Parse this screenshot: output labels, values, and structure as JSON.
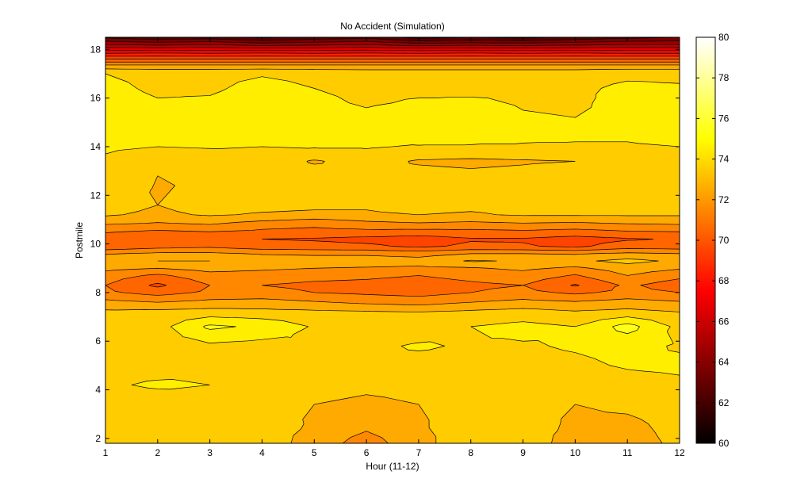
{
  "chart_data": {
    "type": "heatmap",
    "subtype": "filled-contour",
    "title": "No Accident (Simulation)",
    "xlabel": "Hour (11-12)",
    "ylabel": "Postmile",
    "xlim": [
      1,
      12
    ],
    "ylim": [
      1.8,
      18.5
    ],
    "x_ticks": [
      1,
      2,
      3,
      4,
      5,
      6,
      7,
      8,
      9,
      10,
      11,
      12
    ],
    "y_ticks": [
      2,
      4,
      6,
      8,
      10,
      12,
      14,
      16,
      18
    ],
    "colorbar": {
      "colormap": "hot",
      "range": [
        60,
        80
      ],
      "ticks": [
        60,
        62,
        64,
        66,
        68,
        70,
        72,
        74,
        76,
        78,
        80
      ]
    },
    "contour_levels": [
      60,
      61,
      62,
      63,
      64,
      65,
      66,
      67,
      68,
      69,
      70,
      71,
      72,
      73,
      74,
      75,
      76
    ],
    "x": [
      1,
      2,
      3,
      4,
      5,
      6,
      7,
      8,
      9,
      10,
      11,
      12
    ],
    "y": [
      1.8,
      2.6,
      3.4,
      4.2,
      5.0,
      5.8,
      6.6,
      7.2,
      7.6,
      8.0,
      8.3,
      8.7,
      9.0,
      9.3,
      9.6,
      9.9,
      10.2,
      10.5,
      10.8,
      11.0,
      11.2,
      11.6,
      12.2,
      12.8,
      13.4,
      14.0,
      14.6,
      15.2,
      15.8,
      16.4,
      17.0,
      17.3,
      17.6,
      17.9,
      18.2,
      18.5
    ],
    "z": [
      [
        73.3,
        73.3,
        73.6,
        73.5,
        72.6,
        71.5,
        72.7,
        73.6,
        73.6,
        72.5,
        72.6,
        73.2
      ],
      [
        73.4,
        73.4,
        73.7,
        73.4,
        72.9,
        72.3,
        72.9,
        73.4,
        73.5,
        72.8,
        72.8,
        73.3
      ],
      [
        73.6,
        73.6,
        73.8,
        73.2,
        73.0,
        72.8,
        73.0,
        73.3,
        73.4,
        73.0,
        73.2,
        73.5
      ],
      [
        73.9,
        74.1,
        74.0,
        73.7,
        73.4,
        73.2,
        73.3,
        73.5,
        73.6,
        73.3,
        73.6,
        73.8
      ],
      [
        73.7,
        73.7,
        73.9,
        73.9,
        74.0,
        73.8,
        73.7,
        73.7,
        73.7,
        73.8,
        74.1,
        74.2
      ],
      [
        73.4,
        73.5,
        73.8,
        73.6,
        73.8,
        73.8,
        74.1,
        73.9,
        73.9,
        74.1,
        74.3,
        73.9
      ],
      [
        73.5,
        73.6,
        75.2,
        74.8,
        73.9,
        73.4,
        73.5,
        74.0,
        74.3,
        74.0,
        75.4,
        73.7
      ],
      [
        73.2,
        73.3,
        73.4,
        73.3,
        73.2,
        73.1,
        73.0,
        73.2,
        73.4,
        73.1,
        73.3,
        73.0
      ],
      [
        72.3,
        72.0,
        72.3,
        72.4,
        72.1,
        71.8,
        71.6,
        72.0,
        72.3,
        72.1,
        72.4,
        72.1
      ],
      [
        71.2,
        70.6,
        71.2,
        71.3,
        71.0,
        70.8,
        70.6,
        71.0,
        71.3,
        70.8,
        71.3,
        71.0
      ],
      [
        71.0,
        69.8,
        71.0,
        71.0,
        70.8,
        70.7,
        70.5,
        70.8,
        71.0,
        69.9,
        71.2,
        70.4
      ],
      [
        71.5,
        70.8,
        71.6,
        71.5,
        71.3,
        71.2,
        71.0,
        71.3,
        71.6,
        70.9,
        72.0,
        71.3
      ],
      [
        72.3,
        72.0,
        72.4,
        72.2,
        72.0,
        71.9,
        71.8,
        71.9,
        72.2,
        71.8,
        72.5,
        72.1
      ],
      [
        72.8,
        73.0,
        73.0,
        72.7,
        72.6,
        72.6,
        72.4,
        73.1,
        72.9,
        72.8,
        73.3,
        72.8
      ],
      [
        71.9,
        72.2,
        72.2,
        71.9,
        71.8,
        71.8,
        71.6,
        72.0,
        72.0,
        71.9,
        72.2,
        72.0
      ],
      [
        70.2,
        70.6,
        70.8,
        70.4,
        70.3,
        70.2,
        69.8,
        70.2,
        70.1,
        69.8,
        70.5,
        70.4
      ],
      [
        70.4,
        70.0,
        70.3,
        70.0,
        69.9,
        69.7,
        69.5,
        69.9,
        69.9,
        69.6,
        69.9,
        70.1
      ],
      [
        71.1,
        70.8,
        71.0,
        70.8,
        70.7,
        70.7,
        70.6,
        70.7,
        70.8,
        70.6,
        70.9,
        71.0
      ],
      [
        72.0,
        71.8,
        72.0,
        71.4,
        71.2,
        71.6,
        71.8,
        71.6,
        71.8,
        71.7,
        71.9,
        72.0
      ],
      [
        72.7,
        72.3,
        72.6,
        72.2,
        71.9,
        72.2,
        72.4,
        72.3,
        72.5,
        72.4,
        72.6,
        72.6
      ],
      [
        73.1,
        72.8,
        73.1,
        72.9,
        72.8,
        72.9,
        73.0,
        72.9,
        73.1,
        73.1,
        73.1,
        73.1
      ],
      [
        73.4,
        73.0,
        73.4,
        73.3,
        73.2,
        73.1,
        73.3,
        73.2,
        73.3,
        73.3,
        73.2,
        73.6
      ],
      [
        73.6,
        72.9,
        73.3,
        73.4,
        73.3,
        73.3,
        73.5,
        73.2,
        73.3,
        73.5,
        73.4,
        74.0
      ],
      [
        73.9,
        73.0,
        73.0,
        73.5,
        73.4,
        73.2,
        73.3,
        73.2,
        73.3,
        73.5,
        73.5,
        73.8
      ],
      [
        73.8,
        73.2,
        73.3,
        73.6,
        72.9,
        73.4,
        72.9,
        72.8,
        72.9,
        73.0,
        73.6,
        73.7
      ],
      [
        74.2,
        74.0,
        74.1,
        74.0,
        74.1,
        74.1,
        73.9,
        73.9,
        73.9,
        73.9,
        73.9,
        74.0
      ],
      [
        74.5,
        74.6,
        74.6,
        74.6,
        74.4,
        74.3,
        74.9,
        74.6,
        74.3,
        74.2,
        74.2,
        74.4
      ],
      [
        74.6,
        74.8,
        74.7,
        74.8,
        74.5,
        74.2,
        74.5,
        74.6,
        74.1,
        74.0,
        74.3,
        74.7
      ],
      [
        74.5,
        74.1,
        74.2,
        74.7,
        74.2,
        73.9,
        74.1,
        74.2,
        73.9,
        73.8,
        74.4,
        74.5
      ],
      [
        74.3,
        73.8,
        73.8,
        74.4,
        74.0,
        73.8,
        73.8,
        73.7,
        73.8,
        73.8,
        74.2,
        74.1
      ],
      [
        74.0,
        73.7,
        73.7,
        73.9,
        73.7,
        73.6,
        73.6,
        73.6,
        73.6,
        73.6,
        73.8,
        73.8
      ],
      [
        72.5,
        72.5,
        72.5,
        72.5,
        72.5,
        72.5,
        72.5,
        72.5,
        72.5,
        72.5,
        72.5,
        72.5
      ],
      [
        70.0,
        70.0,
        70.0,
        70.0,
        70.0,
        70.0,
        70.0,
        70.0,
        70.0,
        70.0,
        70.0,
        70.0
      ],
      [
        67.5,
        67.6,
        67.5,
        67.6,
        67.5,
        67.6,
        67.5,
        67.6,
        67.5,
        67.6,
        67.5,
        67.5
      ],
      [
        65.0,
        64.8,
        65.0,
        64.6,
        64.8,
        65.0,
        64.5,
        64.7,
        64.6,
        64.8,
        65.0,
        65.0
      ],
      [
        62.8,
        62.2,
        62.5,
        61.8,
        62.3,
        62.7,
        61.6,
        62.0,
        61.7,
        62.2,
        62.7,
        63.0
      ]
    ]
  }
}
